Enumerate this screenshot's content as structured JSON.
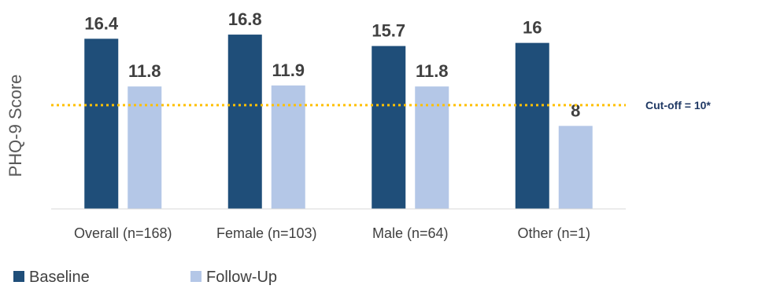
{
  "chart_data": {
    "type": "bar",
    "ylabel": "PHQ-9 Score",
    "xlabel": "",
    "ylim": [
      0,
      19
    ],
    "grid": false,
    "legend_position": "bottom-left",
    "categories": [
      "Overall (n=168)",
      "Female (n=103)",
      "Male (n=64)",
      "Other (n=1)"
    ],
    "series": [
      {
        "name": "Baseline",
        "values": [
          16.4,
          16.8,
          15.7,
          16
        ],
        "labels": [
          "16.4",
          "16.8",
          "15.7",
          "16"
        ],
        "color": "#1f4e79"
      },
      {
        "name": "Follow-Up",
        "values": [
          11.8,
          11.9,
          11.8,
          8
        ],
        "labels": [
          "11.8",
          "11.9",
          "11.8",
          "8"
        ],
        "color": "#b4c7e7"
      }
    ],
    "reference_line": {
      "value": 10,
      "label": "Cut-off = 10*",
      "color": "#ffc000",
      "label_color": "#1f3864",
      "style": "dotted"
    }
  }
}
